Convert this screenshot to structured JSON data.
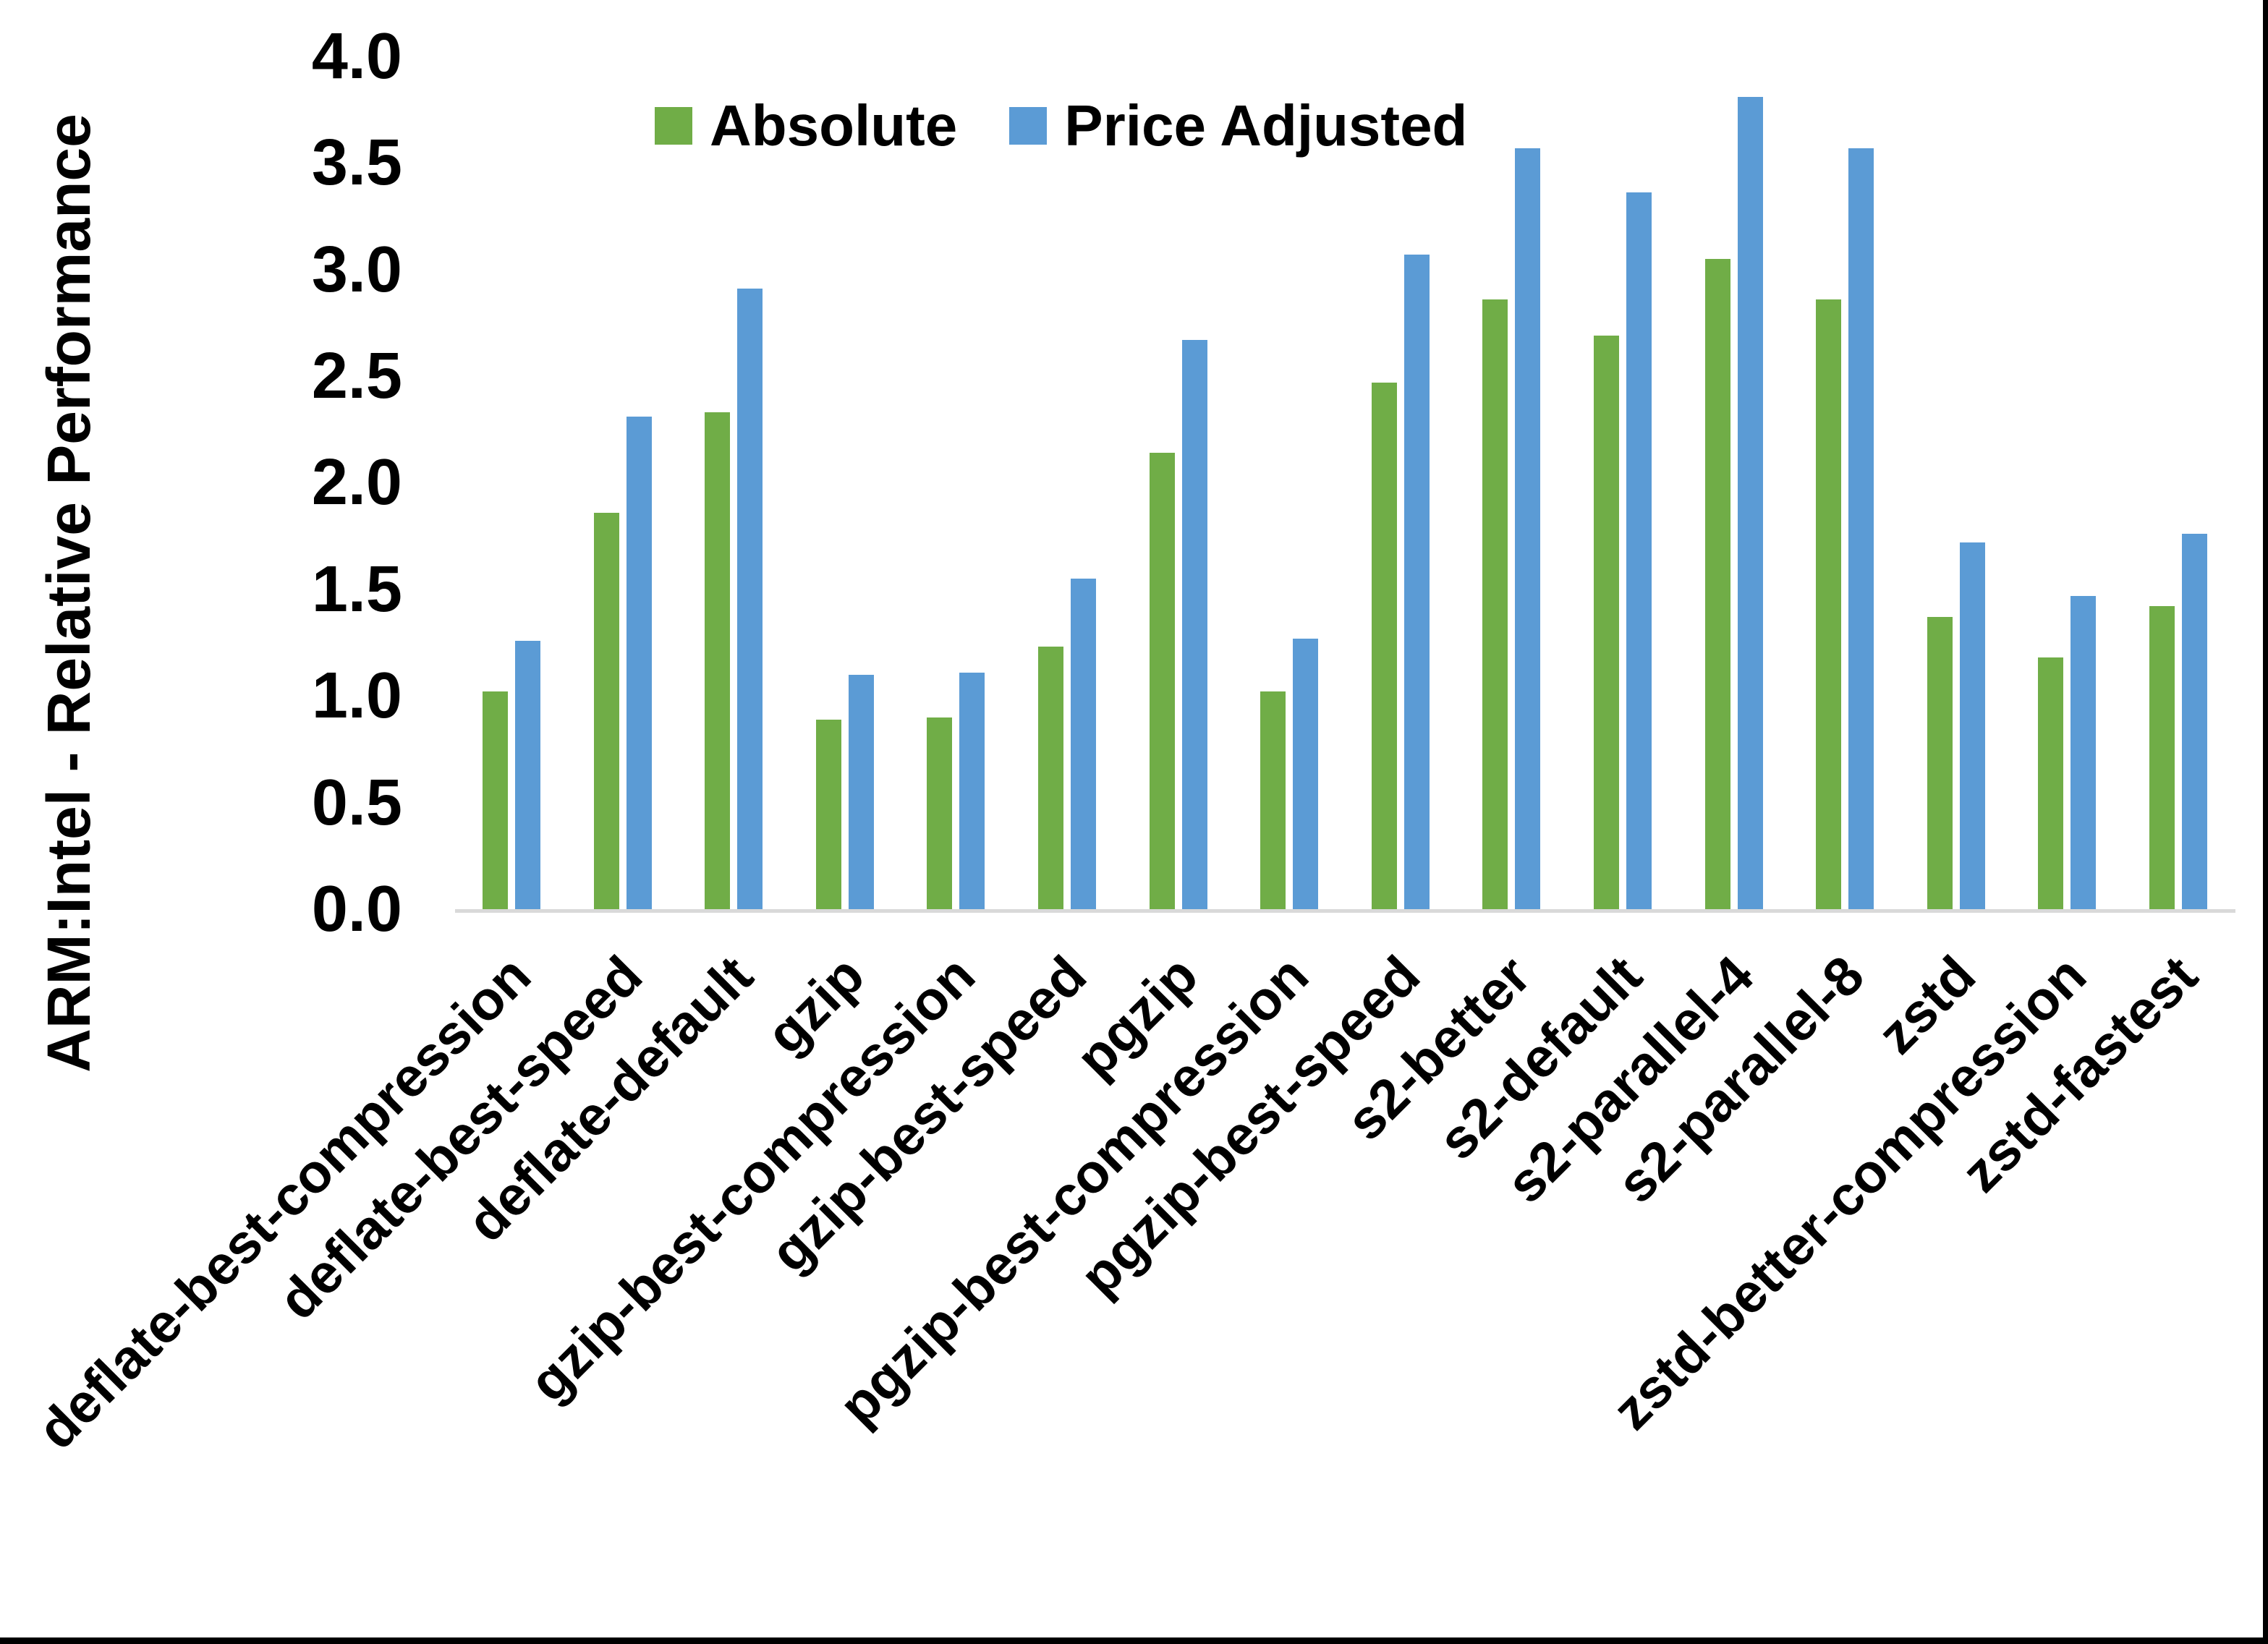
{
  "chart_data": {
    "type": "bar",
    "title": "",
    "ylabel": "ARM:Intel - Relative Performance",
    "xlabel": "",
    "ylim": [
      0,
      4
    ],
    "ytick_labels": [
      "0.0",
      "0.5",
      "1.0",
      "1.5",
      "2.0",
      "2.5",
      "3.0",
      "3.5",
      "4.0"
    ],
    "grid": false,
    "legend_position": "top-center",
    "categories": [
      "deflate-best-compression",
      "deflate-best-speed",
      "deflate-default",
      "gzip",
      "gzip-best-compression",
      "gzip-best-speed",
      "pgzip",
      "pgzip-best-compression",
      "pgzip-best-speed",
      "s2-better",
      "s2-default",
      "s2-parallel-4",
      "s2-parallel-8",
      "zstd",
      "zstd-better-compression",
      "zstd-fastest"
    ],
    "series": [
      {
        "name": "Absolute",
        "color": "#70AD47",
        "values": [
          1.02,
          1.86,
          2.33,
          0.89,
          0.9,
          1.23,
          2.14,
          1.02,
          2.47,
          2.86,
          2.69,
          3.05,
          2.86,
          1.37,
          1.18,
          1.42
        ]
      },
      {
        "name": "Price Adjusted",
        "color": "#5B9BD5",
        "values": [
          1.26,
          2.31,
          2.91,
          1.1,
          1.11,
          1.55,
          2.67,
          1.27,
          3.07,
          3.57,
          3.36,
          3.81,
          3.57,
          1.72,
          1.47,
          1.76
        ]
      }
    ]
  },
  "colors": {
    "axis_line": "#d9d9d9",
    "text": "#000000",
    "background": "#ffffff",
    "frame_border": "#000000"
  }
}
